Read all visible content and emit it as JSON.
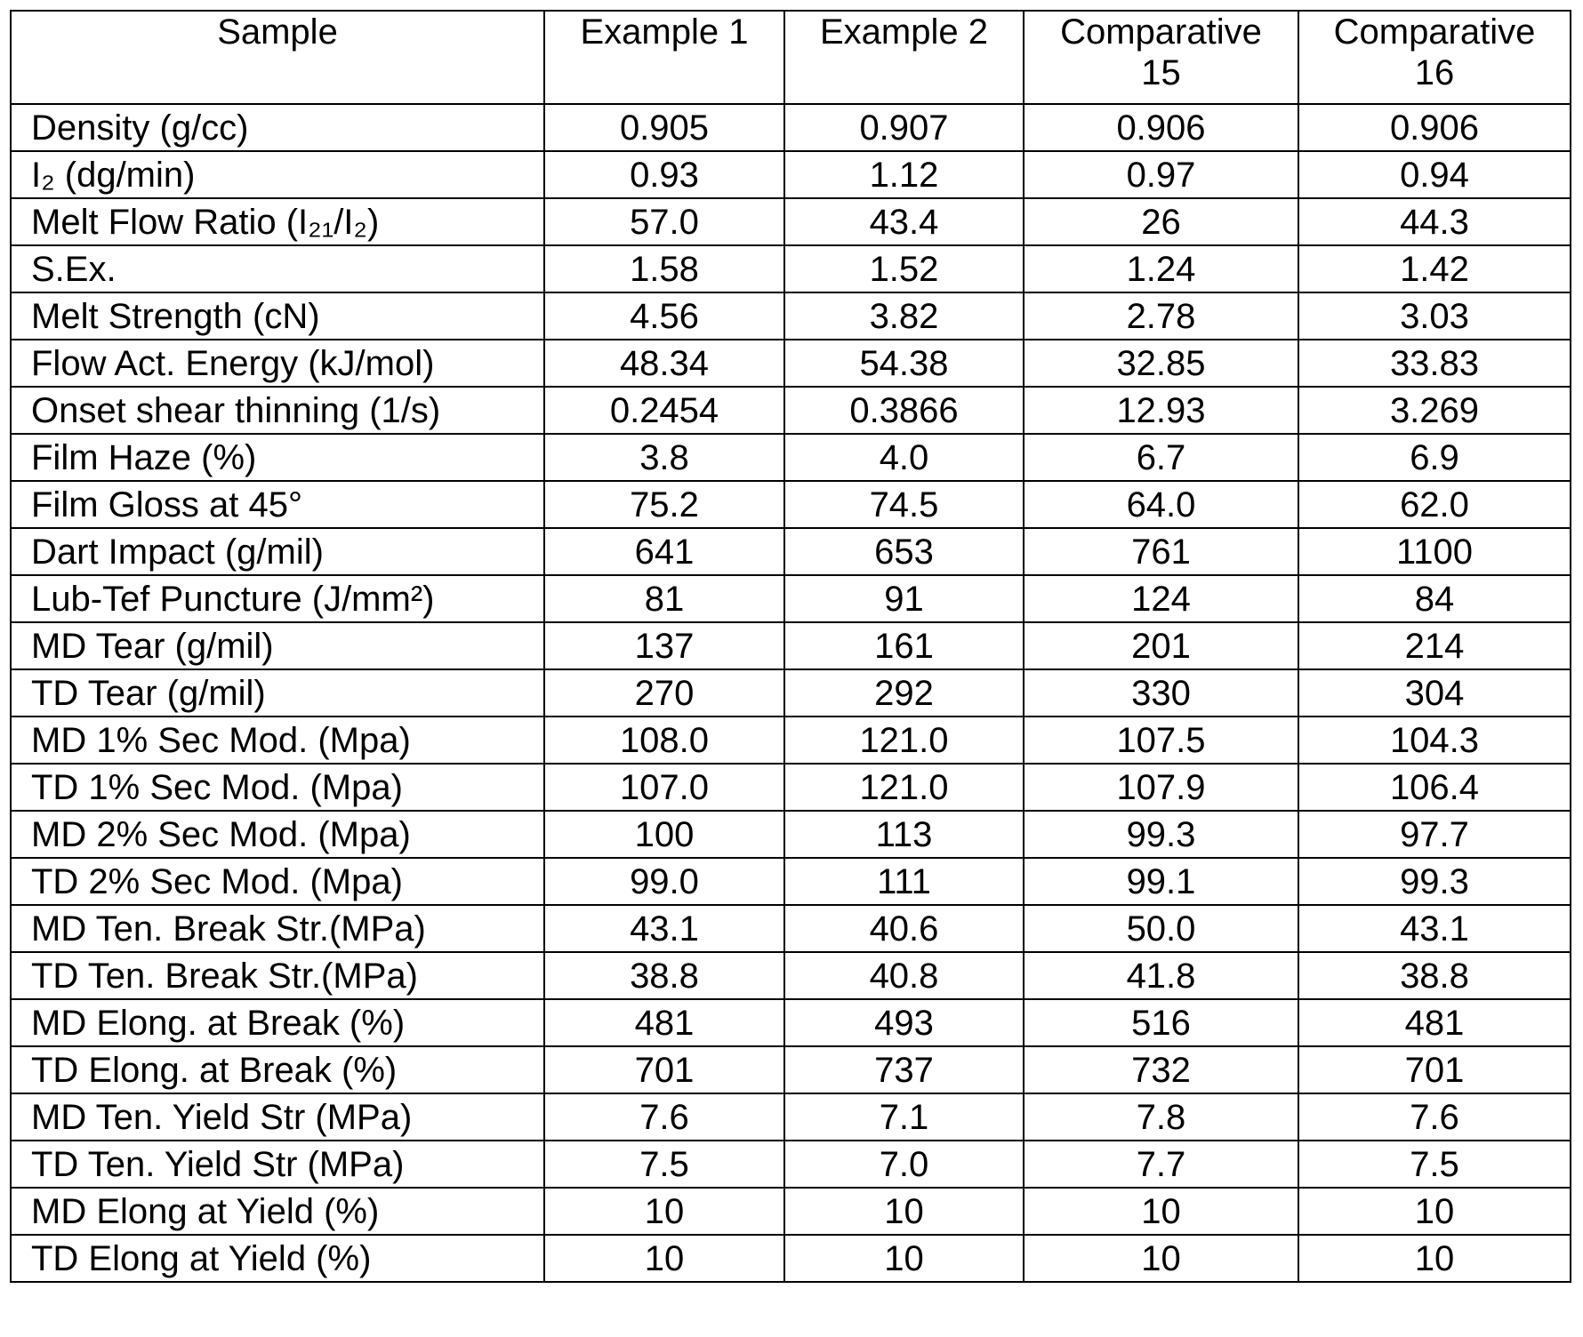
{
  "table": {
    "header": [
      "Sample",
      "Example 1",
      "Example 2",
      "Comparative\n15",
      "Comparative\n16"
    ],
    "rows": [
      [
        "Density (g/cc)",
        "0.905",
        "0.907",
        "0.906",
        "0.906"
      ],
      [
        "I₂ (dg/min)",
        "0.93",
        "1.12",
        "0.97",
        "0.94"
      ],
      [
        "Melt Flow Ratio (I₂₁/I₂)",
        "57.0",
        "43.4",
        "26",
        "44.3"
      ],
      [
        "S.Ex.",
        "1.58",
        "1.52",
        "1.24",
        "1.42"
      ],
      [
        "Melt Strength (cN)",
        "4.56",
        "3.82",
        "2.78",
        "3.03"
      ],
      [
        "Flow Act. Energy (kJ/mol)",
        "48.34",
        "54.38",
        "32.85",
        "33.83"
      ],
      [
        "Onset shear thinning (1/s)",
        "0.2454",
        "0.3866",
        "12.93",
        "3.269"
      ],
      [
        "Film Haze (%)",
        "3.8",
        "4.0",
        "6.7",
        "6.9"
      ],
      [
        "Film Gloss at 45°",
        "75.2",
        "74.5",
        "64.0",
        "62.0"
      ],
      [
        "Dart Impact (g/mil)",
        "641",
        "653",
        "761",
        "1100"
      ],
      [
        "Lub-Tef Puncture (J/mm²)",
        "81",
        "91",
        "124",
        "84"
      ],
      [
        "MD Tear (g/mil)",
        "137",
        "161",
        "201",
        "214"
      ],
      [
        "TD Tear (g/mil)",
        "270",
        "292",
        "330",
        "304"
      ],
      [
        "MD 1% Sec Mod. (Mpa)",
        "108.0",
        "121.0",
        "107.5",
        "104.3"
      ],
      [
        "TD 1% Sec Mod. (Mpa)",
        "107.0",
        "121.0",
        "107.9",
        "106.4"
      ],
      [
        "MD 2% Sec Mod. (Mpa)",
        "100",
        "113",
        "99.3",
        "97.7"
      ],
      [
        "TD 2% Sec Mod. (Mpa)",
        "99.0",
        "111",
        "99.1",
        "99.3"
      ],
      [
        "MD Ten. Break Str.(MPa)",
        "43.1",
        "40.6",
        "50.0",
        "43.1"
      ],
      [
        "TD Ten. Break Str.(MPa)",
        "38.8",
        "40.8",
        "41.8",
        "38.8"
      ],
      [
        "MD Elong. at Break (%)",
        "481",
        "493",
        "516",
        "481"
      ],
      [
        "TD Elong. at Break (%)",
        "701",
        "737",
        "732",
        "701"
      ],
      [
        "MD Ten. Yield Str (MPa)",
        "7.6",
        "7.1",
        "7.8",
        "7.6"
      ],
      [
        "TD Ten. Yield Str (MPa)",
        "7.5",
        "7.0",
        "7.7",
        "7.5"
      ],
      [
        "MD Elong at Yield (%)",
        "10",
        "10",
        "10",
        "10"
      ],
      [
        "TD Elong at Yield (%)",
        "10",
        "10",
        "10",
        "10"
      ]
    ]
  }
}
